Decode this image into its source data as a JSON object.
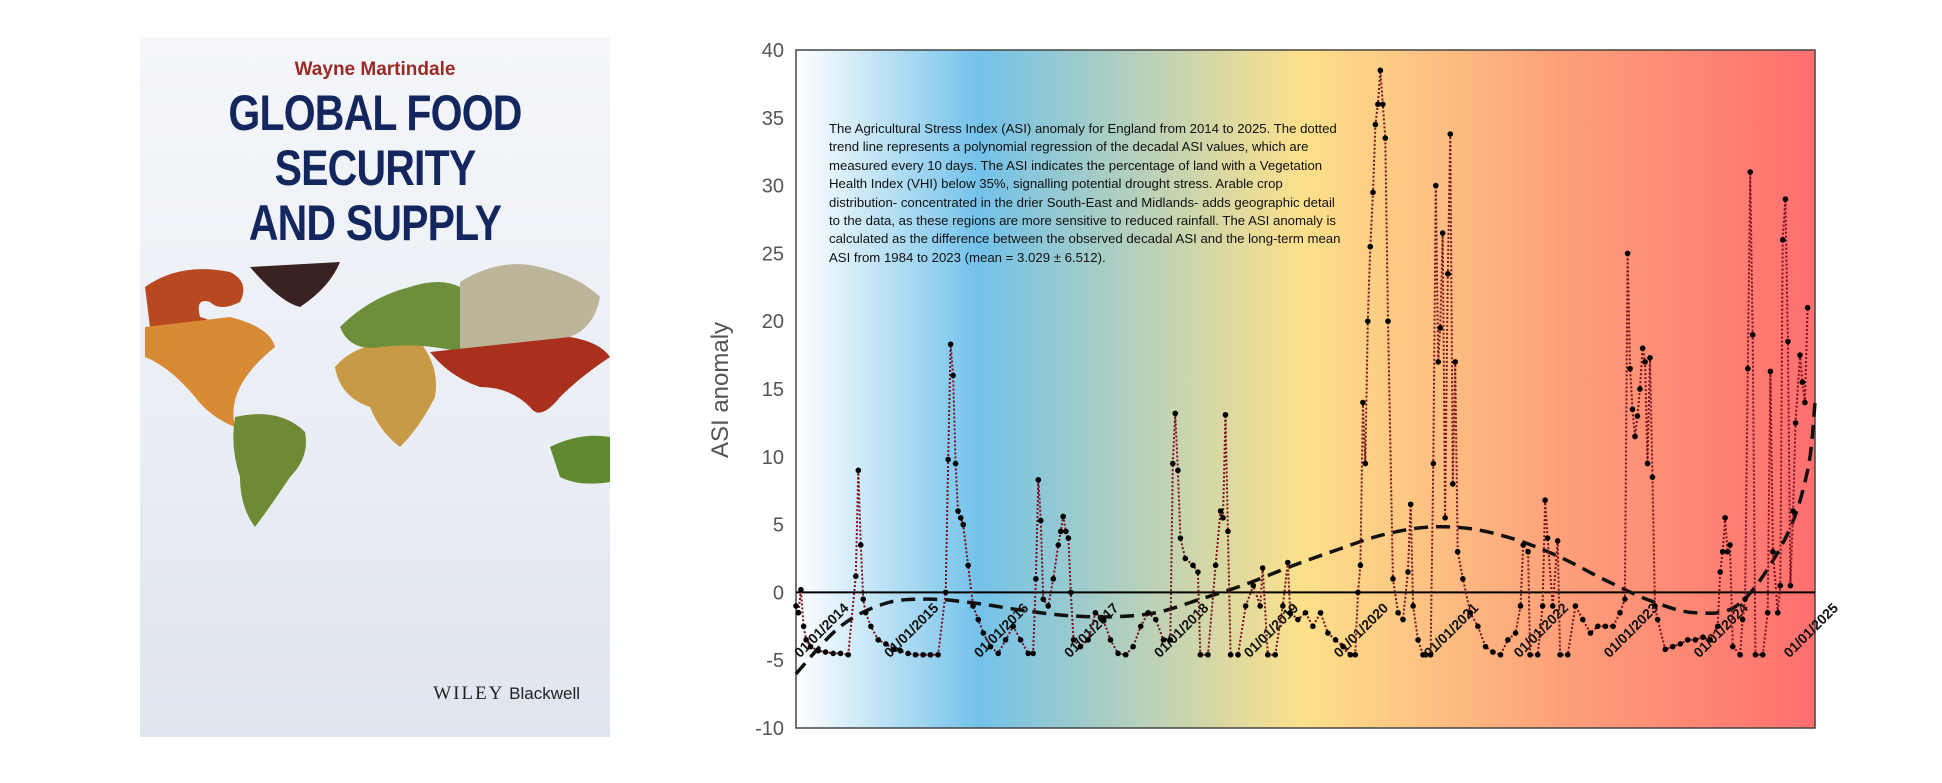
{
  "book_cover": {
    "author": "Wayne Martindale",
    "title_lines": [
      "GLOBAL FOOD",
      "SECURITY",
      "AND SUPPLY"
    ],
    "publisher_main": "WILEY",
    "publisher_sub": "Blackwell"
  },
  "chart_data": {
    "type": "line",
    "ylabel": "ASI anomaly",
    "xlabel": "",
    "ylim": [
      -10,
      40
    ],
    "yticks": [
      -10,
      -5,
      0,
      5,
      10,
      15,
      20,
      25,
      30,
      35,
      40
    ],
    "xlim": [
      "2014-01-01",
      "2025-05-01"
    ],
    "xtick_labels": [
      "01/01/2014",
      "01/01/2015",
      "01/01/2016",
      "01/01/2017",
      "01/01/2018",
      "01/01/2019",
      "01/01/2020",
      "01/01/2021",
      "01/01/2022",
      "01/01/2023",
      "01/01/2024",
      "01/01/2025"
    ],
    "xtick_dates": [
      "2014-01-01",
      "2015-01-01",
      "2016-01-01",
      "2017-01-01",
      "2018-01-01",
      "2019-01-01",
      "2020-01-01",
      "2021-01-01",
      "2022-01-01",
      "2023-01-01",
      "2024-01-01",
      "2025-01-01"
    ],
    "grid": false,
    "background_gradient": [
      "#ffffff",
      "#6fc0e8",
      "#fde08a",
      "#ff6f6f"
    ],
    "series_color": "#7a1020",
    "trend_color": "#111111",
    "annotation": "The Agricultural Stress Index (ASI) anomaly for England from 2014 to 2025. The dotted trend line represents a polynomial regression of the decadal ASI values, which are measured every 10 days. The ASI indicates the percentage of land with a Vegetation Health Index (VHI) below 35%, signalling potential drought stress. Arable crop distribution- concentrated in the drier South-East and Midlands- adds geographic detail to the data, as these regions are more sensitive to reduced rainfall. The ASI anomaly is calculated as the difference between the observed decadal ASI and the long-term mean ASI from 1984 to 2023 (mean = 3.029 ± 6.512).",
    "series": [
      {
        "points": [
          [
            "2014-01-01",
            -1
          ],
          [
            "2014-01-11",
            -1.5
          ],
          [
            "2014-01-21",
            0.2
          ],
          [
            "2014-02-01",
            -2.5
          ],
          [
            "2014-02-11",
            -3.5
          ],
          [
            "2014-03-01",
            -4.0
          ],
          [
            "2014-04-01",
            -4.3
          ],
          [
            "2014-05-01",
            -4.4
          ],
          [
            "2014-06-01",
            -4.5
          ],
          [
            "2014-07-01",
            -4.5
          ],
          [
            "2014-08-01",
            -4.6
          ],
          [
            "2014-09-01",
            1.2
          ],
          [
            "2014-09-11",
            9.0
          ],
          [
            "2014-09-21",
            3.5
          ],
          [
            "2014-10-01",
            -0.5
          ],
          [
            "2014-10-11",
            -1.5
          ],
          [
            "2014-11-01",
            -2.5
          ],
          [
            "2014-12-01",
            -3.5
          ],
          [
            "2015-01-01",
            -3.8
          ],
          [
            "2015-02-01",
            -4.2
          ],
          [
            "2015-03-01",
            -4.3
          ],
          [
            "2015-04-01",
            -4.5
          ],
          [
            "2015-05-01",
            -4.6
          ],
          [
            "2015-06-01",
            -4.6
          ],
          [
            "2015-07-01",
            -4.6
          ],
          [
            "2015-08-01",
            -4.6
          ],
          [
            "2015-09-01",
            0
          ],
          [
            "2015-09-11",
            9.8
          ],
          [
            "2015-09-21",
            18.3
          ],
          [
            "2015-10-01",
            16
          ],
          [
            "2015-10-11",
            9.5
          ],
          [
            "2015-10-21",
            6
          ],
          [
            "2015-11-01",
            5.5
          ],
          [
            "2015-11-11",
            5
          ],
          [
            "2015-12-01",
            2
          ],
          [
            "2015-12-21",
            -1
          ],
          [
            "2016-01-11",
            -2
          ],
          [
            "2016-02-01",
            -3
          ],
          [
            "2016-03-01",
            -4
          ],
          [
            "2016-04-01",
            -4.5
          ],
          [
            "2016-05-01",
            -3.5
          ],
          [
            "2016-06-01",
            -2.5
          ],
          [
            "2016-07-01",
            -3.5
          ],
          [
            "2016-08-01",
            -4.5
          ],
          [
            "2016-08-21",
            -4.5
          ],
          [
            "2016-09-01",
            1
          ],
          [
            "2016-09-11",
            8.3
          ],
          [
            "2016-09-21",
            5.3
          ],
          [
            "2016-10-01",
            -0.5
          ],
          [
            "2016-10-21",
            -1
          ],
          [
            "2016-11-11",
            1
          ],
          [
            "2016-12-01",
            3.5
          ],
          [
            "2016-12-11",
            4.5
          ],
          [
            "2016-12-21",
            5.6
          ],
          [
            "2017-01-01",
            4.5
          ],
          [
            "2017-01-11",
            4
          ],
          [
            "2017-01-21",
            0
          ],
          [
            "2017-02-01",
            -3.5
          ],
          [
            "2017-03-01",
            -4
          ],
          [
            "2017-04-01",
            -3.5
          ],
          [
            "2017-05-01",
            -1.5
          ],
          [
            "2017-06-01",
            -2
          ],
          [
            "2017-07-01",
            -3.5
          ],
          [
            "2017-08-01",
            -4.5
          ],
          [
            "2017-09-01",
            -4.6
          ],
          [
            "2017-10-01",
            -4
          ],
          [
            "2017-11-01",
            -2.5
          ],
          [
            "2017-12-01",
            -1.5
          ],
          [
            "2018-01-01",
            -2
          ],
          [
            "2018-02-01",
            -3.5
          ],
          [
            "2018-03-01",
            -3.5
          ],
          [
            "2018-03-11",
            9.5
          ],
          [
            "2018-03-21",
            13.2
          ],
          [
            "2018-04-01",
            9
          ],
          [
            "2018-04-11",
            4
          ],
          [
            "2018-05-01",
            2.5
          ],
          [
            "2018-06-01",
            2
          ],
          [
            "2018-06-21",
            1.5
          ],
          [
            "2018-07-01",
            -4.6
          ],
          [
            "2018-08-01",
            -4.6
          ],
          [
            "2018-09-01",
            2
          ],
          [
            "2018-09-21",
            6
          ],
          [
            "2018-10-01",
            5.5
          ],
          [
            "2018-10-11",
            13.1
          ],
          [
            "2018-10-21",
            4.5
          ],
          [
            "2018-11-01",
            -4.6
          ],
          [
            "2018-12-01",
            -4.6
          ],
          [
            "2019-01-01",
            -1
          ],
          [
            "2019-02-01",
            0.5
          ],
          [
            "2019-03-01",
            -1
          ],
          [
            "2019-03-11",
            1.8
          ],
          [
            "2019-04-01",
            -4.6
          ],
          [
            "2019-05-01",
            -4.6
          ],
          [
            "2019-06-01",
            -1
          ],
          [
            "2019-06-21",
            2.2
          ],
          [
            "2019-07-01",
            -1.5
          ],
          [
            "2019-08-01",
            -2
          ],
          [
            "2019-09-01",
            -1.5
          ],
          [
            "2019-10-01",
            -2.5
          ],
          [
            "2019-11-01",
            -1.5
          ],
          [
            "2019-12-01",
            -3
          ],
          [
            "2020-01-01",
            -3.5
          ],
          [
            "2020-02-01",
            -4
          ],
          [
            "2020-03-01",
            -4.6
          ],
          [
            "2020-03-21",
            -4.6
          ],
          [
            "2020-04-01",
            0
          ],
          [
            "2020-04-11",
            2
          ],
          [
            "2020-04-21",
            14
          ],
          [
            "2020-05-01",
            9.5
          ],
          [
            "2020-05-11",
            20
          ],
          [
            "2020-05-21",
            25.5
          ],
          [
            "2020-06-01",
            29.5
          ],
          [
            "2020-06-11",
            34.5
          ],
          [
            "2020-06-21",
            36
          ],
          [
            "2020-07-01",
            38.5
          ],
          [
            "2020-07-11",
            36
          ],
          [
            "2020-07-21",
            33.5
          ],
          [
            "2020-08-01",
            20
          ],
          [
            "2020-08-21",
            1
          ],
          [
            "2020-09-11",
            -1.5
          ],
          [
            "2020-10-01",
            -2
          ],
          [
            "2020-10-21",
            1.5
          ],
          [
            "2020-11-01",
            6.5
          ],
          [
            "2020-11-11",
            -1
          ],
          [
            "2020-12-01",
            -3.5
          ],
          [
            "2020-12-21",
            -4.6
          ],
          [
            "2021-01-01",
            -4.6
          ],
          [
            "2021-01-21",
            -4.6
          ],
          [
            "2021-02-01",
            9.5
          ],
          [
            "2021-02-11",
            30
          ],
          [
            "2021-02-21",
            17
          ],
          [
            "2021-03-01",
            19.5
          ],
          [
            "2021-03-11",
            26.5
          ],
          [
            "2021-03-21",
            5.5
          ],
          [
            "2021-04-01",
            23.5
          ],
          [
            "2021-04-11",
            33.8
          ],
          [
            "2021-04-21",
            8
          ],
          [
            "2021-05-01",
            17
          ],
          [
            "2021-05-11",
            3
          ],
          [
            "2021-06-01",
            1
          ],
          [
            "2021-07-01",
            -1.5
          ],
          [
            "2021-08-01",
            -2.5
          ],
          [
            "2021-09-01",
            -4
          ],
          [
            "2021-10-01",
            -4.4
          ],
          [
            "2021-11-01",
            -4.6
          ],
          [
            "2021-12-01",
            -3.5
          ],
          [
            "2022-01-01",
            -3
          ],
          [
            "2022-01-21",
            -1
          ],
          [
            "2022-02-01",
            3.5
          ],
          [
            "2022-02-21",
            3
          ],
          [
            "2022-03-01",
            -4.6
          ],
          [
            "2022-04-01",
            -4.6
          ],
          [
            "2022-04-21",
            -1
          ],
          [
            "2022-05-01",
            6.8
          ],
          [
            "2022-05-11",
            4
          ],
          [
            "2022-06-01",
            -1
          ],
          [
            "2022-06-21",
            3.8
          ],
          [
            "2022-07-01",
            -4.6
          ],
          [
            "2022-08-01",
            -4.6
          ],
          [
            "2022-09-01",
            -1
          ],
          [
            "2022-10-01",
            -2
          ],
          [
            "2022-11-01",
            -3
          ],
          [
            "2022-12-01",
            -2.5
          ],
          [
            "2023-01-01",
            -2.5
          ],
          [
            "2023-02-01",
            -2.5
          ],
          [
            "2023-03-01",
            -1.5
          ],
          [
            "2023-03-21",
            -0.5
          ],
          [
            "2023-04-01",
            25
          ],
          [
            "2023-04-11",
            16.5
          ],
          [
            "2023-04-21",
            13.5
          ],
          [
            "2023-05-01",
            11.5
          ],
          [
            "2023-05-11",
            13
          ],
          [
            "2023-05-21",
            15
          ],
          [
            "2023-06-01",
            18
          ],
          [
            "2023-06-11",
            17
          ],
          [
            "2023-06-21",
            9.5
          ],
          [
            "2023-07-01",
            17.3
          ],
          [
            "2023-07-11",
            8.5
          ],
          [
            "2023-07-21",
            -1
          ],
          [
            "2023-08-01",
            -2
          ],
          [
            "2023-09-01",
            -4.2
          ],
          [
            "2023-10-01",
            -4
          ],
          [
            "2023-11-01",
            -3.8
          ],
          [
            "2023-12-01",
            -3.5
          ],
          [
            "2024-01-01",
            -3.5
          ],
          [
            "2024-02-01",
            -3.3
          ],
          [
            "2024-03-01",
            -3.5
          ],
          [
            "2024-04-01",
            -2.5
          ],
          [
            "2024-04-11",
            1.5
          ],
          [
            "2024-04-21",
            3
          ],
          [
            "2024-05-01",
            5.5
          ],
          [
            "2024-05-11",
            3
          ],
          [
            "2024-05-21",
            3.5
          ],
          [
            "2024-06-01",
            -4
          ],
          [
            "2024-07-01",
            -4.6
          ],
          [
            "2024-07-11",
            -2
          ],
          [
            "2024-07-21",
            -0.5
          ],
          [
            "2024-08-01",
            16.5
          ],
          [
            "2024-08-11",
            31
          ],
          [
            "2024-08-21",
            19
          ],
          [
            "2024-09-01",
            -4.6
          ],
          [
            "2024-10-01",
            -4.6
          ],
          [
            "2024-10-21",
            -1.5
          ],
          [
            "2024-11-01",
            16.3
          ],
          [
            "2024-11-11",
            3
          ],
          [
            "2024-12-01",
            -1.5
          ],
          [
            "2024-12-11",
            0.5
          ],
          [
            "2024-12-21",
            26
          ],
          [
            "2025-01-01",
            29
          ],
          [
            "2025-01-11",
            18.5
          ],
          [
            "2025-01-21",
            0.5
          ],
          [
            "2025-02-01",
            6
          ],
          [
            "2025-02-11",
            12.5
          ],
          [
            "2025-03-01",
            17.5
          ],
          [
            "2025-03-11",
            15.5
          ],
          [
            "2025-03-21",
            14
          ],
          [
            "2025-04-01",
            21
          ]
        ]
      }
    ],
    "trend": [
      [
        "2014-01-01",
        -6
      ],
      [
        "2014-07-01",
        -2.5
      ],
      [
        "2015-01-01",
        -0.8
      ],
      [
        "2015-07-01",
        -0.5
      ],
      [
        "2016-01-01",
        -0.8
      ],
      [
        "2016-07-01",
        -1.3
      ],
      [
        "2017-01-01",
        -1.7
      ],
      [
        "2017-07-01",
        -1.8
      ],
      [
        "2018-01-01",
        -1.5
      ],
      [
        "2018-07-01",
        -0.5
      ],
      [
        "2019-01-01",
        0.6
      ],
      [
        "2019-07-01",
        1.9
      ],
      [
        "2020-01-01",
        3.1
      ],
      [
        "2020-07-01",
        4.2
      ],
      [
        "2021-01-01",
        4.8
      ],
      [
        "2021-07-01",
        4.7
      ],
      [
        "2022-01-01",
        3.9
      ],
      [
        "2022-07-01",
        2.6
      ],
      [
        "2023-01-01",
        0.9
      ],
      [
        "2023-07-01",
        -0.6
      ],
      [
        "2024-01-01",
        -1.5
      ],
      [
        "2024-07-01",
        -0.8
      ],
      [
        "2025-01-01",
        4
      ],
      [
        "2025-04-01",
        9
      ],
      [
        "2025-05-01",
        14
      ]
    ]
  }
}
